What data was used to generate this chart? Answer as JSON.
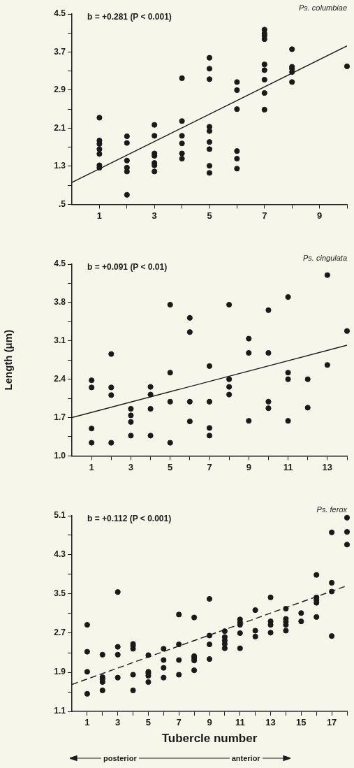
{
  "chart_data": [
    {
      "type": "scatter",
      "title": "Ps. columbiae",
      "annotations": [
        "b = +0.281 (P < 0.001)"
      ],
      "xlim": [
        0,
        10
      ],
      "ylim": [
        0.5,
        4.5
      ],
      "grid": false,
      "legend": false,
      "marker": "circle",
      "xticks": [
        1,
        {
          "value": 2,
          "label": null
        },
        3,
        {
          "value": 4,
          "label": null
        },
        5,
        {
          "value": 6,
          "label": null
        },
        7,
        {
          "value": 8,
          "label": null
        },
        9,
        {
          "value": 10,
          "label": null
        }
      ],
      "yticks": [
        {
          "value": 0.5,
          "label": ".5"
        },
        {
          "value": 0.9,
          "label": null
        },
        1.3,
        {
          "value": 1.7,
          "label": null
        },
        2.1,
        {
          "value": 2.5,
          "label": null
        },
        2.9,
        {
          "value": 3.3,
          "label": null
        },
        3.7,
        {
          "value": 4.1,
          "label": null
        },
        4.5
      ],
      "series": [
        {
          "color": "#1a1a1a",
          "x": [
            1,
            1,
            1,
            1,
            1,
            1,
            1,
            2,
            2,
            2,
            2,
            2,
            2,
            3,
            3,
            3,
            3,
            3,
            3,
            3,
            4,
            4,
            4,
            4,
            4,
            4,
            5,
            5,
            5,
            5,
            5,
            5,
            5,
            5,
            5,
            6,
            6,
            6,
            6,
            6,
            6,
            7,
            7,
            7,
            7,
            7,
            7,
            7,
            7,
            7,
            8,
            8,
            8,
            8,
            8,
            10
          ],
          "values": [
            2.32,
            1.84,
            1.77,
            1.66,
            1.56,
            1.32,
            1.27,
            1.93,
            1.79,
            1.42,
            1.27,
            1.19,
            0.7,
            2.17,
            1.94,
            1.57,
            1.52,
            1.37,
            1.32,
            1.19,
            3.15,
            2.25,
            1.94,
            1.78,
            1.57,
            1.46,
            3.58,
            3.35,
            3.13,
            2.13,
            2.04,
            1.81,
            1.66,
            1.31,
            1.16,
            3.07,
            2.9,
            2.5,
            1.62,
            1.46,
            1.25,
            4.17,
            4.09,
            4.04,
            3.97,
            3.44,
            3.32,
            3.12,
            2.84,
            2.49,
            3.76,
            3.39,
            3.35,
            3.28,
            3.07,
            3.4
          ]
        },
        {
          "type": "line",
          "color": "#1a1a1a",
          "line_style": "solid",
          "marker": "none",
          "x": [
            0,
            10
          ],
          "values": [
            0.96,
            3.83
          ]
        }
      ]
    },
    {
      "type": "scatter",
      "title": "Ps. cingulata",
      "ylabel": "Length (μm)",
      "annotations": [
        "b = +0.091 (P < 0.01)"
      ],
      "xlim": [
        0,
        14
      ],
      "ylim": [
        1,
        4.5
      ],
      "grid": false,
      "legend": false,
      "marker": "circle",
      "xticks": [
        1,
        {
          "value": 2,
          "label": null
        },
        3,
        {
          "value": 4,
          "label": null
        },
        5,
        {
          "value": 6,
          "label": null
        },
        7,
        {
          "value": 8,
          "label": null
        },
        9,
        {
          "value": 10,
          "label": null
        },
        11,
        {
          "value": 12,
          "label": null
        },
        13,
        {
          "value": 14,
          "label": null
        }
      ],
      "yticks": [
        {
          "value": 1,
          "label": "1.0"
        },
        {
          "value": 1.35,
          "label": null
        },
        1.7,
        {
          "value": 2.05,
          "label": null
        },
        2.4,
        {
          "value": 2.75,
          "label": null
        },
        3.1,
        {
          "value": 3.45,
          "label": null
        },
        3.8,
        {
          "value": 4.15,
          "label": null
        },
        4.5
      ],
      "series": [
        {
          "color": "#1a1a1a",
          "x": [
            1,
            1,
            1,
            1,
            2,
            2,
            2,
            2,
            3,
            3,
            3,
            3,
            4,
            4,
            4,
            4,
            5,
            5,
            5,
            5,
            6,
            6,
            6,
            6,
            7,
            7,
            7,
            7,
            8,
            8,
            8,
            8,
            9,
            9,
            9,
            10,
            10,
            10,
            10,
            11,
            11,
            11,
            11,
            12,
            12,
            13,
            13,
            14
          ],
          "values": [
            2.38,
            2.25,
            1.5,
            1.24,
            2.86,
            2.25,
            2.11,
            1.24,
            1.86,
            1.74,
            1.62,
            1.37,
            2.26,
            2.12,
            1.86,
            1.37,
            3.76,
            2.52,
            1.99,
            1.24,
            3.52,
            3.26,
            1.99,
            1.63,
            2.64,
            1.99,
            1.51,
            1.37,
            3.76,
            2.4,
            2.26,
            2.12,
            3.14,
            2.88,
            1.64,
            3.66,
            2.88,
            1.99,
            1.87,
            3.9,
            2.52,
            2.4,
            1.64,
            2.4,
            1.88,
            4.3,
            2.66,
            3.28
          ]
        },
        {
          "type": "line",
          "color": "#1a1a1a",
          "line_style": "solid",
          "marker": "none",
          "x": [
            0,
            14
          ],
          "values": [
            1.7,
            3.02
          ]
        }
      ]
    },
    {
      "type": "scatter",
      "title": "Ps. ferox",
      "xlabel": "Tubercle number",
      "annotations": [
        "b = +0.112 (P < 0.001)",
        "posterior",
        "anterior"
      ],
      "xlim": [
        0,
        18
      ],
      "ylim": [
        1.1,
        5.1
      ],
      "grid": false,
      "legend": false,
      "marker": "circle",
      "xticks": [
        1,
        {
          "value": 2,
          "label": null
        },
        3,
        {
          "value": 4,
          "label": null
        },
        5,
        {
          "value": 6,
          "label": null
        },
        7,
        {
          "value": 8,
          "label": null
        },
        9,
        {
          "value": 10,
          "label": null
        },
        11,
        {
          "value": 12,
          "label": null
        },
        13,
        {
          "value": 14,
          "label": null
        },
        15,
        {
          "value": 16,
          "label": null
        },
        17,
        {
          "value": 18,
          "label": null
        }
      ],
      "yticks": [
        1.1,
        {
          "value": 1.5,
          "label": null
        },
        1.9,
        {
          "value": 2.3,
          "label": null
        },
        2.7,
        {
          "value": 3.1,
          "label": null
        },
        3.5,
        {
          "value": 3.9,
          "label": null
        },
        4.3,
        {
          "value": 4.7,
          "label": null
        },
        5.1
      ],
      "series": [
        {
          "color": "#1a1a1a",
          "x": [
            1,
            1,
            1,
            1,
            2,
            2,
            2,
            2,
            2,
            3,
            3,
            3,
            3,
            4,
            4,
            4,
            4,
            4,
            5,
            5,
            5,
            5,
            5,
            6,
            6,
            6,
            6,
            7,
            7,
            7,
            7,
            8,
            8,
            8,
            8,
            8,
            9,
            9,
            9,
            9,
            10,
            10,
            10,
            10,
            10,
            11,
            11,
            11,
            11,
            11,
            12,
            12,
            12,
            13,
            13,
            13,
            13,
            14,
            14,
            14,
            14,
            14,
            15,
            15,
            16,
            16,
            16,
            16,
            16,
            17,
            17,
            17,
            17,
            18,
            18,
            18
          ],
          "values": [
            2.87,
            2.32,
            1.91,
            1.46,
            2.26,
            1.8,
            1.76,
            1.7,
            1.53,
            3.54,
            2.42,
            2.26,
            1.79,
            2.48,
            2.44,
            2.38,
            1.85,
            1.53,
            2.25,
            1.91,
            1.88,
            1.83,
            1.7,
            2.38,
            2.15,
            1.99,
            1.79,
            3.08,
            2.47,
            2.15,
            1.85,
            3.02,
            2.23,
            2.19,
            2.14,
            1.94,
            3.4,
            2.65,
            2.47,
            2.17,
            2.74,
            2.62,
            2.55,
            2.48,
            2.39,
            2.98,
            2.92,
            2.87,
            2.7,
            2.39,
            3.17,
            2.75,
            2.63,
            3.43,
            2.94,
            2.87,
            2.71,
            3.2,
            2.99,
            2.93,
            2.87,
            2.75,
            3.11,
            2.94,
            3.89,
            3.43,
            3.38,
            3.32,
            3.03,
            4.76,
            3.73,
            3.55,
            2.64,
            5.06,
            4.77,
            4.51
          ]
        },
        {
          "type": "line",
          "color": "#1a1a1a",
          "line_style": "dashed",
          "marker": "none",
          "x": [
            0,
            18
          ],
          "values": [
            1.65,
            3.67
          ]
        }
      ]
    }
  ]
}
